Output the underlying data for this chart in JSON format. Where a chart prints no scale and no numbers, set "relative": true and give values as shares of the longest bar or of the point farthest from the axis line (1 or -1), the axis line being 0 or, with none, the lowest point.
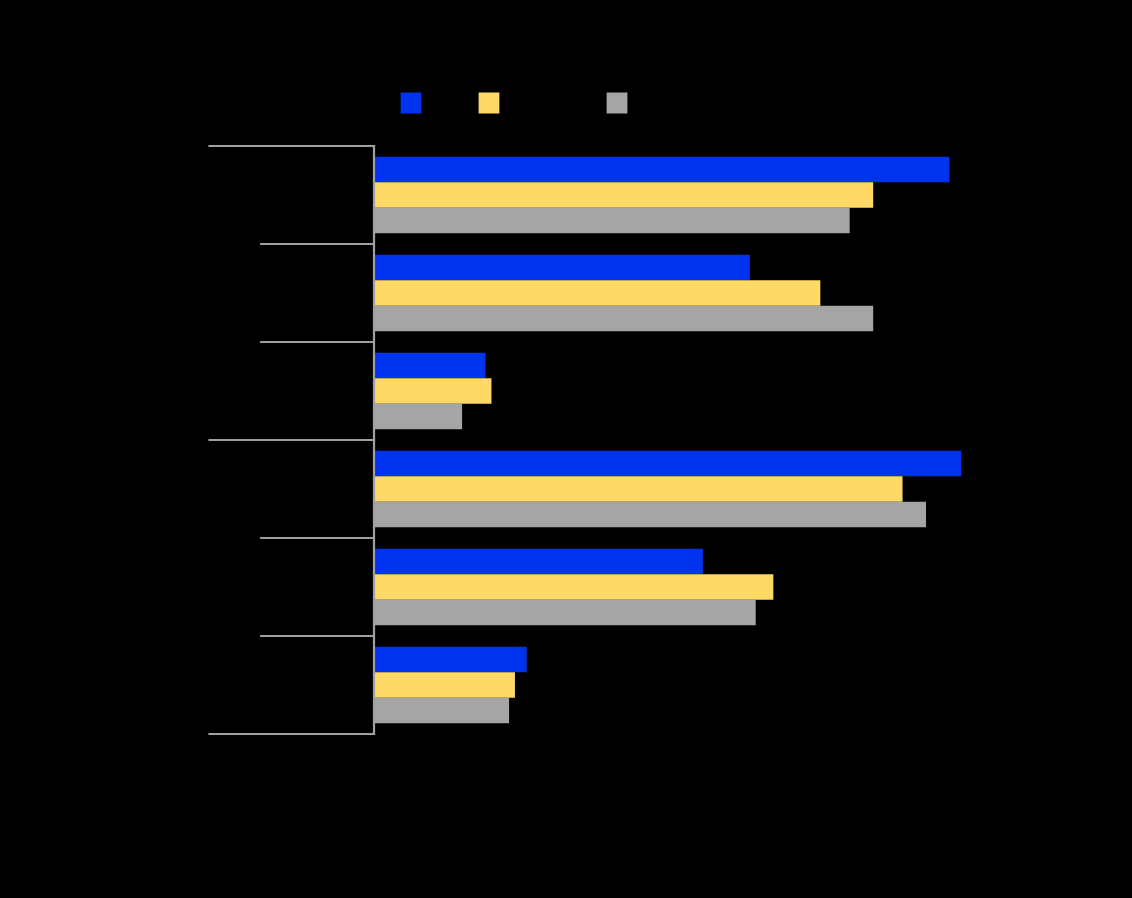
{
  "chart_data": {
    "type": "bar",
    "orientation": "horizontal",
    "relative": true,
    "grid": false,
    "categories": [
      null,
      null,
      null,
      null,
      null,
      null
    ],
    "series": [
      {
        "color": "#0033ee",
        "values": [
          0.98,
          0.64,
          0.19,
          1.0,
          0.56,
          0.26
        ]
      },
      {
        "color": "#ffd966",
        "values": [
          0.85,
          0.76,
          0.2,
          0.9,
          0.68,
          0.24
        ]
      },
      {
        "color": "#a5a5a5",
        "values": [
          0.81,
          0.85,
          0.15,
          0.94,
          0.65,
          0.23
        ]
      }
    ]
  }
}
